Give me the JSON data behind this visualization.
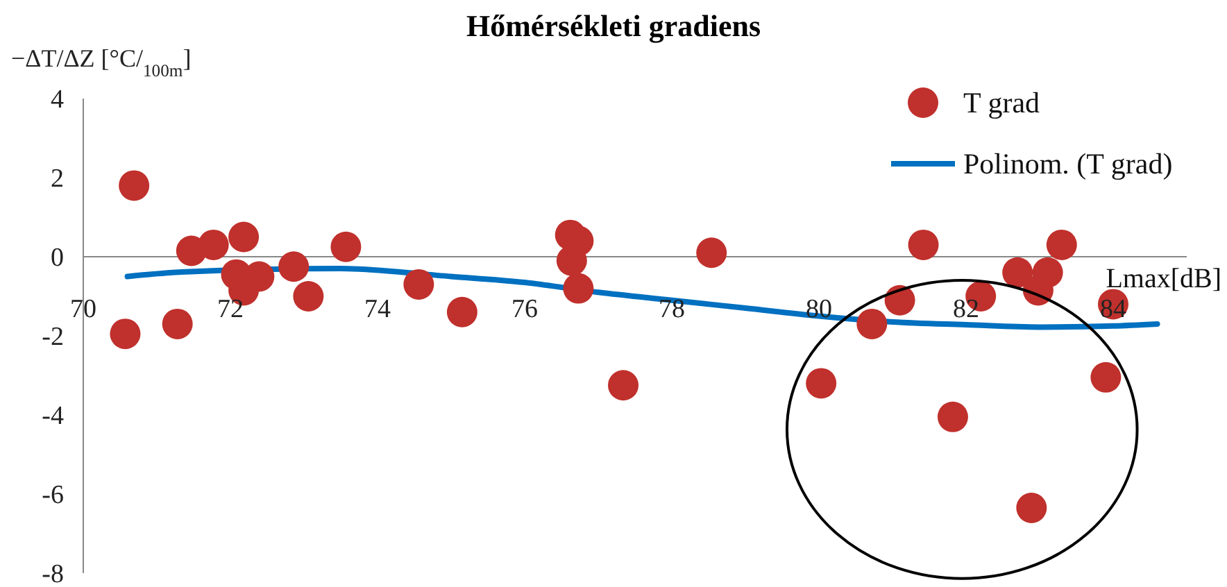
{
  "chart_data": {
    "type": "scatter",
    "title": "Hőmérsékleti gradiens",
    "xlabel": "Lmax[dB]",
    "ylabel": "−ΔT/ΔZ   [°C/$_{100m}$]",
    "xlim": [
      70,
      85
    ],
    "xticks": [
      70,
      72,
      74,
      76,
      78,
      80,
      82,
      84
    ],
    "ylim": [
      -8,
      4
    ],
    "yticks": [
      -8,
      -6,
      -4,
      -2,
      0,
      2,
      4
    ],
    "grid": false,
    "legend": "top right",
    "series": [
      {
        "name": "T grad",
        "marker": "circle",
        "color": "#c0302c",
        "x": [
          70.69,
          70.57,
          71.28,
          71.47,
          71.77,
          72.18,
          72.08,
          72.39,
          72.18,
          72.86,
          73.06,
          73.57,
          74.56,
          75.15,
          76.62,
          76.64,
          76.73,
          76.73,
          78.54,
          81.42,
          83.3,
          82.7,
          83.11,
          82.98,
          82.2,
          81.1,
          84.0,
          80.72,
          77.34,
          80.03,
          81.82,
          83.9,
          82.89
        ],
        "values": [
          1.8,
          -1.95,
          -1.7,
          0.15,
          0.3,
          0.5,
          -0.45,
          -0.5,
          -0.85,
          -0.25,
          -1.0,
          0.25,
          -0.7,
          -1.4,
          0.55,
          -0.1,
          0.4,
          -0.8,
          0.1,
          0.3,
          0.3,
          -0.4,
          -0.4,
          -0.85,
          -1.0,
          -1.1,
          -1.2,
          -1.7,
          -3.25,
          -3.2,
          -4.05,
          -3.05,
          -6.35
        ]
      },
      {
        "name": "Polinom. (T grad)",
        "type": "line",
        "marker": "none",
        "color": "#0070c0",
        "line_style": "solid",
        "x": [
          70.6,
          71.4,
          73.5,
          75,
          76,
          77,
          78,
          79,
          80,
          81,
          82,
          83,
          84,
          84.6
        ],
        "values": [
          -0.5,
          -0.38,
          -0.3,
          -0.5,
          -0.65,
          -0.9,
          -1.1,
          -1.3,
          -1.5,
          -1.65,
          -1.72,
          -1.78,
          -1.75,
          -1.7
        ]
      }
    ]
  }
}
